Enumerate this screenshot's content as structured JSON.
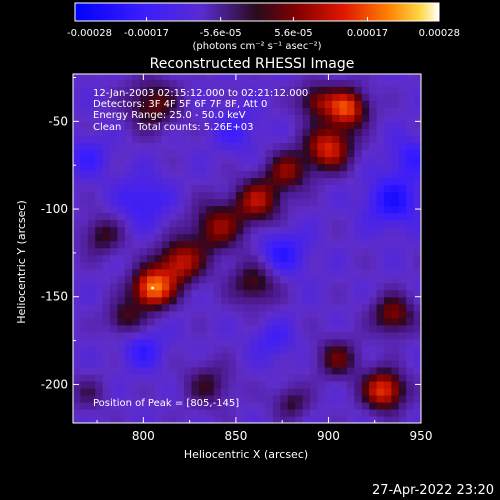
{
  "chart_data": {
    "type": "heatmap",
    "title": "Reconstructed RHESSI Image",
    "xlabel": "Heliocentric X (arcsec)",
    "ylabel": "Heliocentric Y (arcsec)",
    "xlim": [
      762,
      950
    ],
    "ylim": [
      -222,
      -23
    ],
    "x_ticks": [
      800,
      850,
      900,
      950
    ],
    "y_ticks": [
      -50,
      -100,
      -150,
      -200
    ],
    "colorbar": {
      "range": [
        -0.00028,
        0.00028
      ],
      "ticks": [
        {
          "value": -0.00028,
          "label": "-0.00028"
        },
        {
          "value": -0.00017,
          "label": "-0.00017"
        },
        {
          "value": -5.6e-05,
          "label": "-5.6e-05"
        },
        {
          "value": 5.6e-05,
          "label": "5.6e-05"
        },
        {
          "value": 0.00017,
          "label": "0.00017"
        },
        {
          "value": 0.00028,
          "label": "0.00028"
        }
      ],
      "units": "(photons cm⁻² s⁻¹ asec⁻²)"
    },
    "info_lines": [
      "12-Jan-2003 02:15:12.000 to 02:21:12.000",
      "Detectors: 3F 4F 5F 6F 7F 8F, Att 0",
      "Energy Range: 25.0 - 50.0 keV",
      "Clean     Total counts: 5.26E+03"
    ],
    "peak_label": "Position of Peak = [805,-145]",
    "peak": [
      805,
      -145
    ],
    "blobs": [
      {
        "x": 805,
        "y": -145,
        "amp": 0.00028,
        "sigma": 8
      },
      {
        "x": 820,
        "y": -130,
        "amp": 0.0002,
        "sigma": 9
      },
      {
        "x": 790,
        "y": -162,
        "amp": 0.00012,
        "sigma": 7
      },
      {
        "x": 840,
        "y": -110,
        "amp": 0.00016,
        "sigma": 10
      },
      {
        "x": 862,
        "y": -95,
        "amp": 0.00018,
        "sigma": 9
      },
      {
        "x": 878,
        "y": -78,
        "amp": 0.00015,
        "sigma": 8
      },
      {
        "x": 900,
        "y": -65,
        "amp": 0.00022,
        "sigma": 9
      },
      {
        "x": 910,
        "y": -42,
        "amp": 0.00024,
        "sigma": 8
      },
      {
        "x": 893,
        "y": -38,
        "amp": 0.00014,
        "sigma": 7
      },
      {
        "x": 805,
        "y": -40,
        "amp": 0.00014,
        "sigma": 10
      },
      {
        "x": 930,
        "y": -203,
        "amp": 0.00024,
        "sigma": 8
      },
      {
        "x": 935,
        "y": -160,
        "amp": 0.00016,
        "sigma": 8
      },
      {
        "x": 905,
        "y": -185,
        "amp": 0.00013,
        "sigma": 8
      },
      {
        "x": 860,
        "y": -142,
        "amp": 0.00013,
        "sigma": 9
      },
      {
        "x": 778,
        "y": -115,
        "amp": 0.00011,
        "sigma": 8
      },
      {
        "x": 835,
        "y": -200,
        "amp": 0.0001,
        "sigma": 9
      },
      {
        "x": 770,
        "y": -205,
        "amp": 7e-05,
        "sigma": 7
      },
      {
        "x": 880,
        "y": -210,
        "amp": 0.0001,
        "sigma": 7
      },
      {
        "x": 875,
        "y": -125,
        "amp": -0.0001,
        "sigma": 9
      },
      {
        "x": 935,
        "y": -95,
        "amp": -0.00012,
        "sigma": 10
      },
      {
        "x": 945,
        "y": -70,
        "amp": -8e-05,
        "sigma": 8
      },
      {
        "x": 800,
        "y": -95,
        "amp": -8e-05,
        "sigma": 10
      },
      {
        "x": 770,
        "y": -70,
        "amp": -7e-05,
        "sigma": 8
      },
      {
        "x": 850,
        "y": -55,
        "amp": -6e-05,
        "sigma": 9
      },
      {
        "x": 800,
        "y": -180,
        "amp": -8e-05,
        "sigma": 8
      },
      {
        "x": 870,
        "y": -175,
        "amp": -6e-05,
        "sigma": 8
      }
    ]
  },
  "footer": {
    "timestamp": "27-Apr-2022 23:20"
  }
}
